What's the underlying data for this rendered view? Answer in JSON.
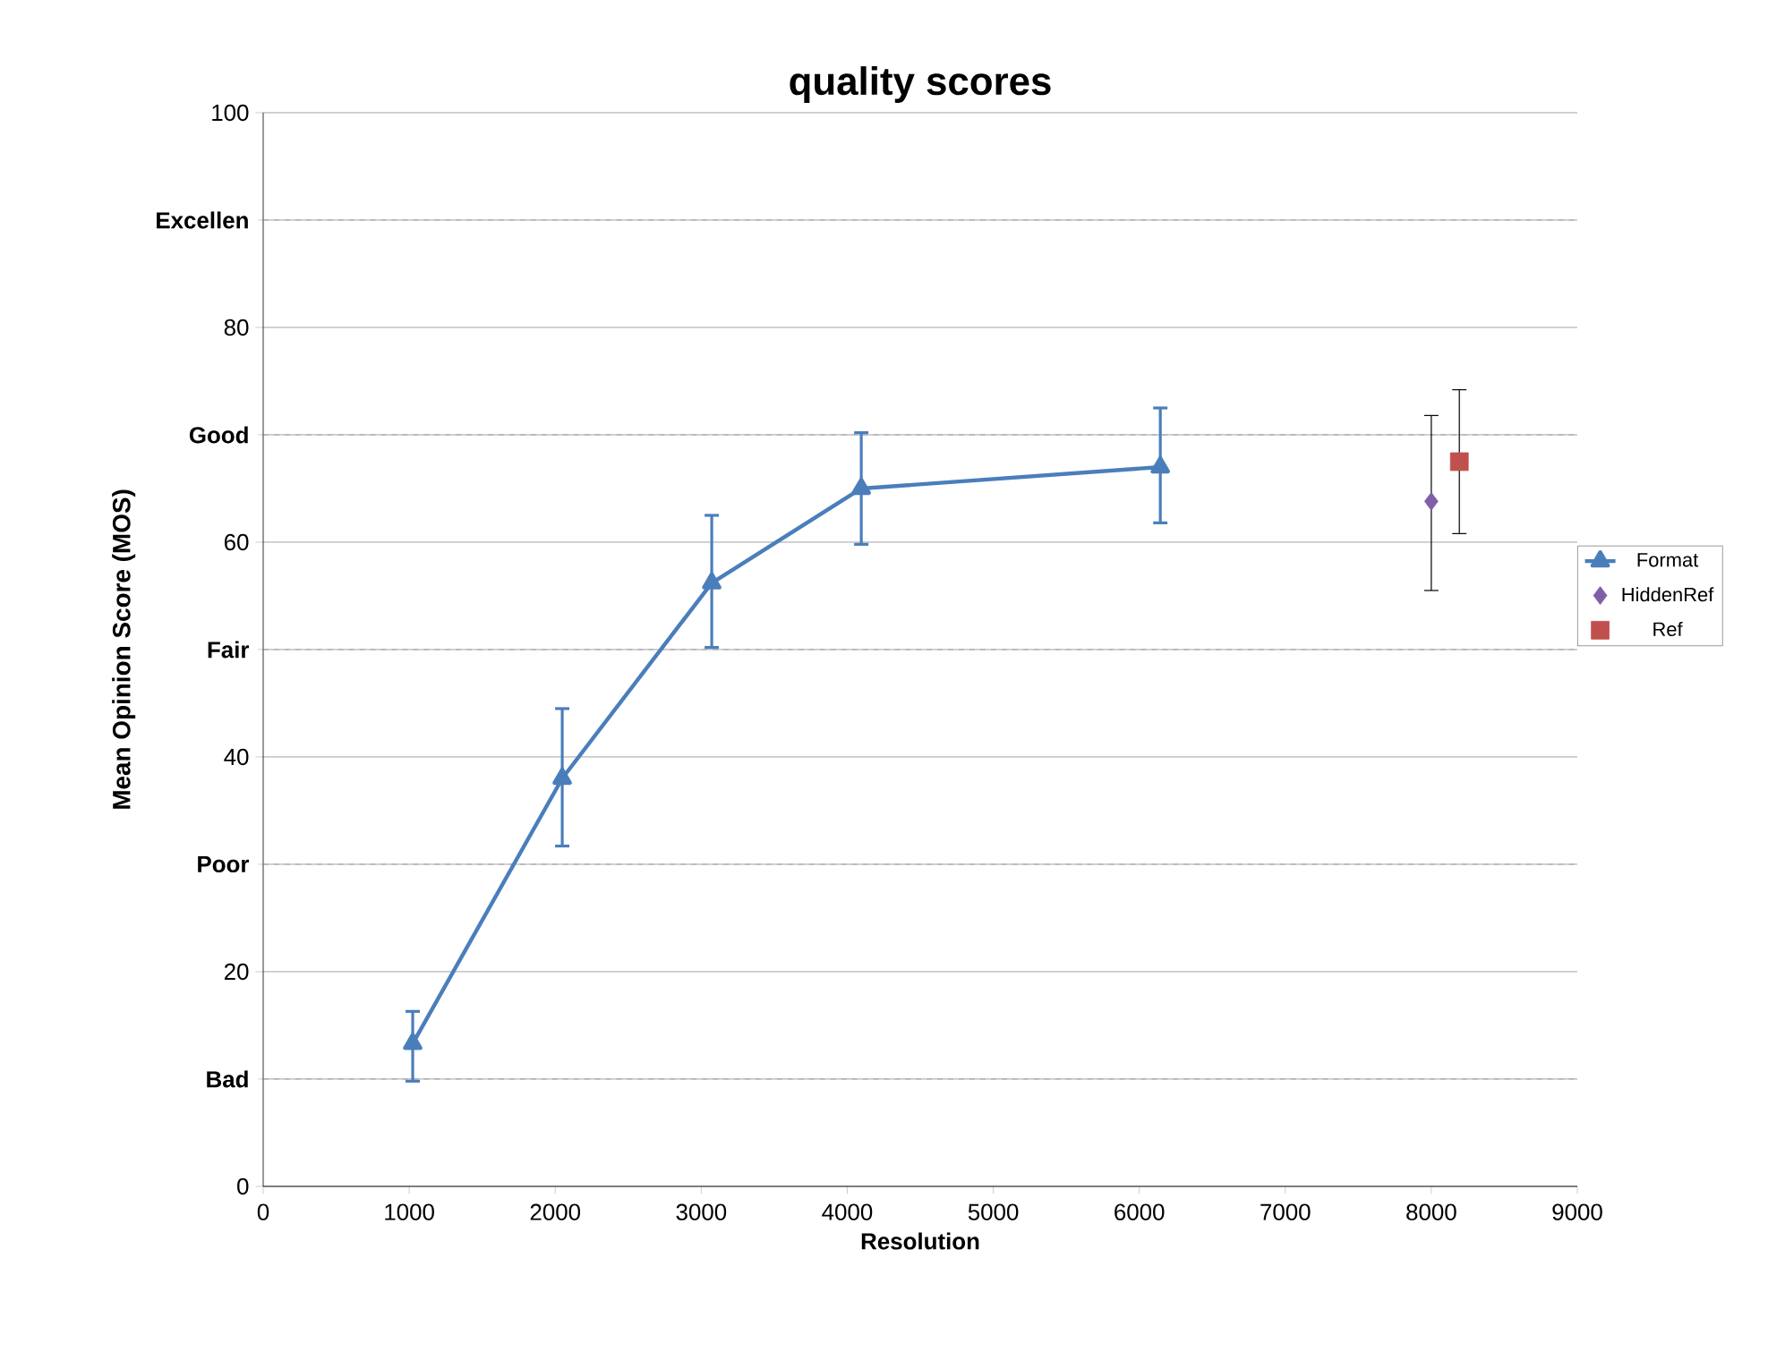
{
  "chart_data": {
    "type": "line",
    "title": "quality scores",
    "xlabel": "Resolution",
    "ylabel": "Mean Opinion Score (MOS)",
    "xlim": [
      0,
      9000
    ],
    "xticks": [
      0,
      1000,
      2000,
      3000,
      4000,
      5000,
      6000,
      7000,
      8000,
      9000
    ],
    "ylim": [
      0,
      100
    ],
    "yticks": [
      0,
      20,
      40,
      60,
      80,
      100,
      {
        "value": 10,
        "label": "Bad"
      },
      {
        "value": 30,
        "label": "Poor"
      },
      {
        "value": 50,
        "label": "Fair"
      },
      {
        "value": 70,
        "label": "Good"
      },
      {
        "value": 90,
        "label": "Excellen"
      }
    ],
    "grid": "y",
    "legend": "right",
    "series": [
      {
        "name": "Format",
        "marker": "triangle",
        "color": "#4a7ebb",
        "x": [
          1024,
          2048,
          3072,
          4096,
          6144
        ],
        "values": [
          13.3,
          38,
          56.2,
          65,
          67
        ],
        "errors": [
          [
            9.8,
            16.3
          ],
          [
            31.7,
            44.5
          ],
          [
            50.2,
            62.5
          ],
          [
            59.8,
            70.2
          ],
          [
            61.8,
            72.5
          ]
        ]
      },
      {
        "name": "HiddenRef",
        "type": "scatter",
        "marker": "diamond",
        "color": "#7f5fa8",
        "x": [
          8000
        ],
        "values": [
          63.8
        ],
        "errors": [
          [
            55.5,
            71.8
          ]
        ]
      },
      {
        "name": "Ref",
        "type": "scatter",
        "marker": "square",
        "color": "#c0504d",
        "x": [
          8192
        ],
        "values": [
          67.5
        ],
        "errors": [
          [
            60.8,
            74.2
          ]
        ]
      }
    ]
  }
}
